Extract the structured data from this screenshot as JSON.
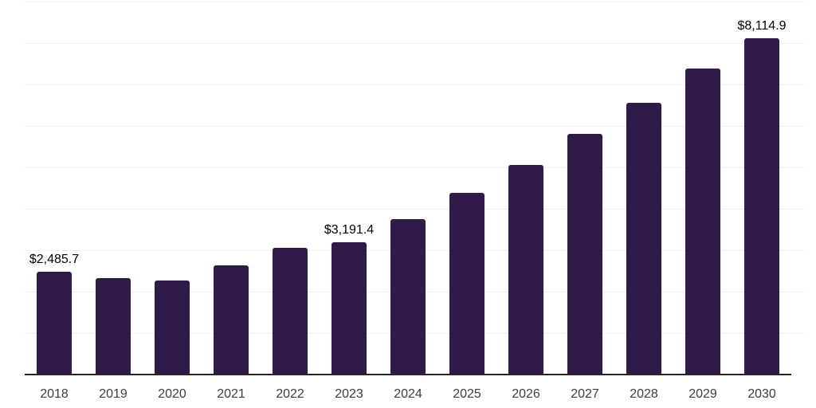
{
  "chart_data": {
    "type": "bar",
    "title": "",
    "xlabel": "",
    "ylabel": "",
    "categories": [
      "2018",
      "2019",
      "2020",
      "2021",
      "2022",
      "2023",
      "2024",
      "2025",
      "2026",
      "2027",
      "2028",
      "2029",
      "2030"
    ],
    "values": [
      2485.7,
      2327,
      2269,
      2629,
      3063,
      3191.4,
      3741,
      4385,
      5053,
      5801,
      6562,
      7388,
      8114.9
    ],
    "data_labels": {
      "2018": "$2,485.7",
      "2023": "$3,191.4",
      "2030": "$8,114.9"
    },
    "ylim": [
      0,
      9000
    ],
    "gridline_step": 1000,
    "grid": true,
    "legend": false,
    "y_tick_labels_visible": false,
    "colors": {
      "bar": "#301a48",
      "axis": "#262626",
      "gridline": "#f0f0f0",
      "data_label": "#000000",
      "x_tick_label": "#3d3d3d",
      "background": "#ffffff"
    }
  }
}
